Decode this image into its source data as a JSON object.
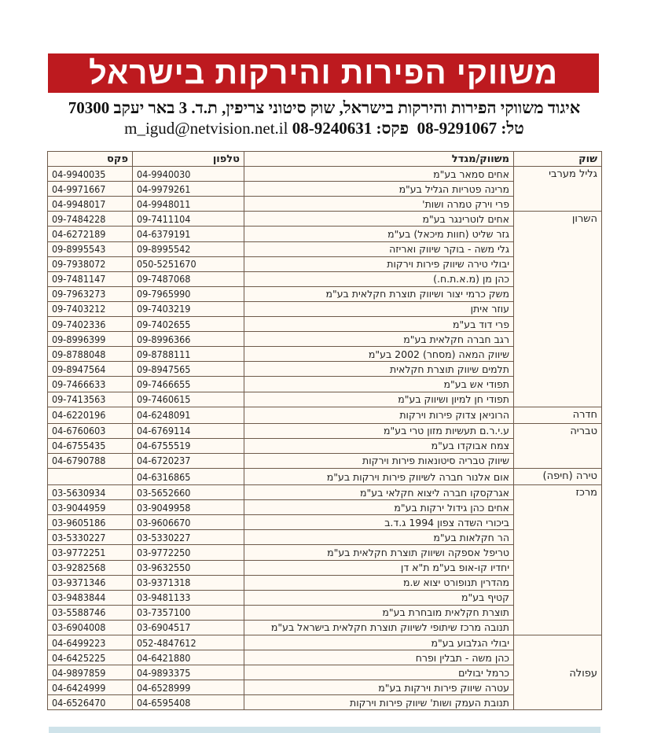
{
  "header": {
    "title": "משווקי הפירות והירקות בישראל",
    "address": "איגוד משווקי הפירות והירקות בישראל, שוק סיטוני צריפין, ת.ד. 3 באר יעקב 70300",
    "phone_label": "טל:",
    "phone": "08-9291067",
    "fax_label": "פקס:",
    "fax": "08-9240631",
    "email": "m_igud@netvision.net.il"
  },
  "colors": {
    "banner": "#bd1a1f",
    "table_bg": "#fffaf3"
  },
  "table": {
    "columns": {
      "market": "שוק",
      "name": "משווק/מגדל",
      "phone": "טלפון",
      "fax": "פקס"
    },
    "groups": [
      {
        "market": "גליל מערבי",
        "rows": [
          {
            "name": "אחים סמאר בע\"מ",
            "phone": "04-9940030",
            "fax": "04-9940035"
          },
          {
            "name": "מרינה פטריות הגליל בע\"מ",
            "phone": "04-9979261",
            "fax": "04-9971667"
          },
          {
            "name": "פרי וירק טמרה ושות'",
            "phone": "04-9948011",
            "fax": "04-9948017"
          }
        ]
      },
      {
        "market": "השרון",
        "rows": [
          {
            "name": "אחים לוטרינגר בע\"מ",
            "phone": "09-7411104",
            "fax": "09-7484228"
          },
          {
            "name": "גזר שליט (חוות מיכאל) בע\"מ",
            "phone": "04-6379191",
            "fax": "04-6272189"
          },
          {
            "name": "גלי משה - בוקר שיווק ואריזה",
            "phone": "09-8995542",
            "fax": "09-8995543"
          },
          {
            "name": "יבולי טירה שיווק פירות וירקות",
            "phone": "050-5251670",
            "fax": "09-7938072"
          },
          {
            "name": "כהן מן (מ.א.ת.ח.)",
            "phone": "09-7487068",
            "fax": "09-7481147"
          },
          {
            "name": "משק כרמי יצור ושיווק תוצרת חקלאית בע\"מ",
            "phone": "09-7965990",
            "fax": "09-7963273"
          },
          {
            "name": "עוזר איתן",
            "phone": "09-7403219",
            "fax": "09-7403212"
          },
          {
            "name": "פרי דוד בע\"מ",
            "phone": "09-7402655",
            "fax": "09-7402336"
          },
          {
            "name": "רגב חברה חקלאית בע\"מ",
            "phone": "09-8996366",
            "fax": "09-8996399"
          },
          {
            "name": "שיווק המאה (מסחר) 2002 בע\"מ",
            "phone": "09-8788111",
            "fax": "09-8788048"
          },
          {
            "name": "תלמים שיווק תוצרת חקלאית",
            "phone": "09-8947565",
            "fax": "09-8947564"
          },
          {
            "name": "תפודי אש בע\"מ",
            "phone": "09-7466655",
            "fax": "09-7466633"
          },
          {
            "name": "תפודי חן למיון ושיווק בע\"מ",
            "phone": "09-7460615",
            "fax": "09-7413563"
          }
        ]
      },
      {
        "market": "חדרה",
        "rows": [
          {
            "name": "הרוניאן צדוק פירות וירקות",
            "phone": "04-6248091",
            "fax": "04-6220196"
          }
        ]
      },
      {
        "market": "טבריה",
        "rows": [
          {
            "name": "ע.י.ר.ם תעשיות מזון טרי בע\"מ",
            "phone": "04-6769114",
            "fax": "04-6760603"
          },
          {
            "name": "צמח אבוקדו בע\"מ",
            "phone": "04-6755519",
            "fax": "04-6755435"
          },
          {
            "name": "שיווק טבריה סיטונאות פירות וירקות",
            "phone": "04-6720237",
            "fax": "04-6790788"
          }
        ]
      },
      {
        "market": "טירה (חיפה)",
        "rows": [
          {
            "name": "אום אלנור חברה לשיווק פירות וירקות בע\"מ",
            "phone": "04-6316865",
            "fax": ""
          }
        ]
      },
      {
        "market": "מרכז",
        "rows": [
          {
            "name": "אגרקסקו חברה ליצוא חקלאי בע\"מ",
            "phone": "03-5652660",
            "fax": "03-5630934"
          },
          {
            "name": "אחים כהן גידול ירקות בע\"מ",
            "phone": "03-9049958",
            "fax": "03-9044959"
          },
          {
            "name": "ביכורי השדה צפון 1994 ג.ד.ב",
            "phone": "03-9606670",
            "fax": "03-9605186"
          },
          {
            "name": "הר חקלאות בע\"מ",
            "phone": "03-5330227",
            "fax": "03-5330227"
          },
          {
            "name": "טריפל אספקה ושיווק תוצרת חקלאית בע\"מ",
            "phone": "03-9772250",
            "fax": "03-9772251"
          },
          {
            "name": "יחדיו קו-אופ בע\"מ ת\"א דן",
            "phone": "03-9632550",
            "fax": "03-9282568"
          },
          {
            "name": "מהדרין תנופורט יצוא ש.מ",
            "phone": "03-9371318",
            "fax": "03-9371346"
          },
          {
            "name": "קטיף בע\"מ",
            "phone": "03-9481133",
            "fax": "03-9483844"
          },
          {
            "name": "תוצרת חקלאית מובחרת בע\"מ",
            "phone": "03-7357100",
            "fax": "03-5588746"
          },
          {
            "name": "תנובה מרכז שיתופי לשיווק תוצרת חקלאית בישראל בע\"מ",
            "phone": "03-6904517",
            "fax": "03-6904008"
          }
        ]
      },
      {
        "market": "עפולה",
        "rows": [
          {
            "name": "יבולי הגלבוע בע\"מ",
            "phone": "052-4847612",
            "fax": "04-6499223"
          },
          {
            "name": "כהן משה - תבלין ופרח",
            "phone": "04-6421880",
            "fax": "04-6425225"
          },
          {
            "name": "כרמל יבולים",
            "phone": "04-9893375",
            "fax": "04-9897859"
          },
          {
            "name": "עטרה שיווק פירות וירקות בע\"מ",
            "phone": "04-6528999",
            "fax": "04-6424999"
          },
          {
            "name": "תנובת העמק ושות' שיווק פירות וירקות",
            "phone": "04-6595408",
            "fax": "04-6526470"
          }
        ]
      }
    ]
  }
}
